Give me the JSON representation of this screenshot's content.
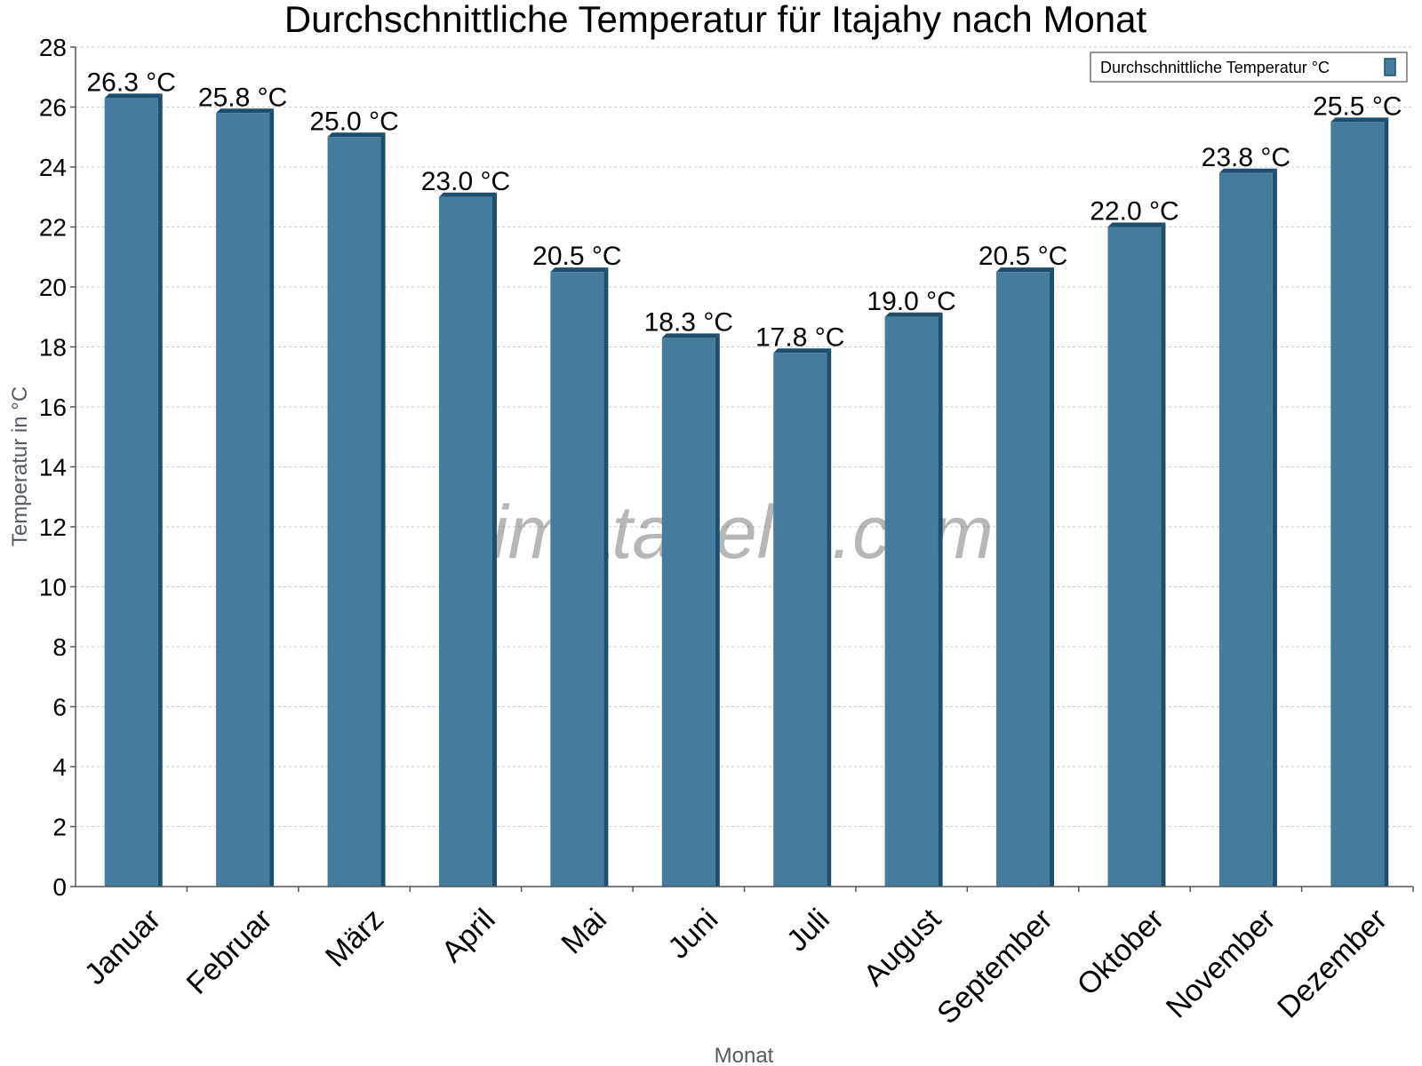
{
  "chart_data": {
    "type": "bar",
    "title": "Durchschnittliche Temperatur für Itajahy nach Monat",
    "xlabel": "Monat",
    "ylabel": "Temperatur in °C",
    "ylim": [
      0,
      28
    ],
    "yticks": [
      0,
      2,
      4,
      6,
      8,
      10,
      12,
      14,
      16,
      18,
      20,
      22,
      24,
      26,
      28
    ],
    "categories": [
      "Januar",
      "Februar",
      "März",
      "April",
      "Mai",
      "Juni",
      "Juli",
      "August",
      "September",
      "Oktober",
      "November",
      "Dezember"
    ],
    "series": [
      {
        "name": "Durchschnittliche Temperatur °C",
        "values": [
          26.3,
          25.8,
          25.0,
          23.0,
          20.5,
          18.3,
          17.8,
          19.0,
          20.5,
          22.0,
          23.8,
          25.5
        ],
        "data_labels": [
          "26.3 °C",
          "25.8 °C",
          "25.0 °C",
          "23.0 °C",
          "20.5 °C",
          "18.3 °C",
          "17.8 °C",
          "19.0 °C",
          "20.5 °C",
          "22.0 °C",
          "23.8 °C",
          "25.5 °C"
        ]
      }
    ],
    "grid": true,
    "legend_position": "top-right",
    "colors": {
      "bar": "#457b9d",
      "bar_side": "#1d4e6e",
      "grid": "#cccccc"
    },
    "watermark": "klimatabelle.com"
  }
}
